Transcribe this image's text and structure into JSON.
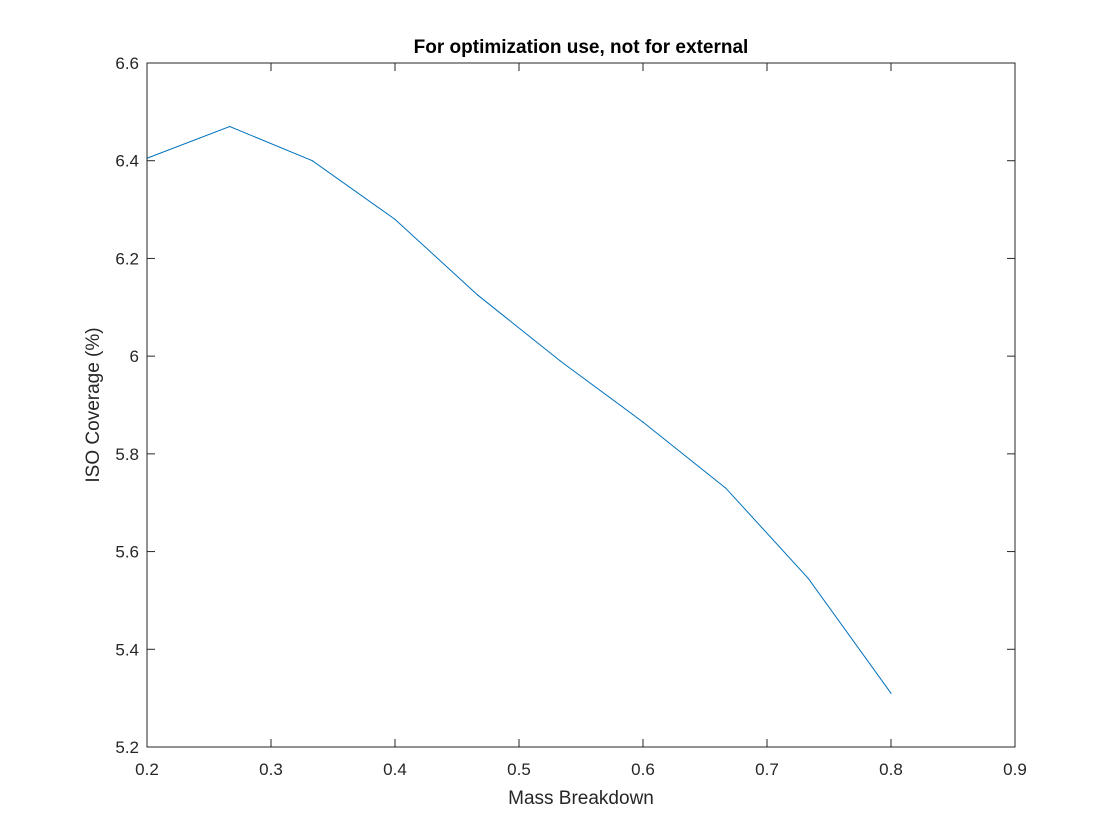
{
  "chart_data": {
    "type": "line",
    "title": "For optimization use, not for external",
    "xlabel": "Mass Breakdown",
    "ylabel": "ISO Coverage (%)",
    "xlim": [
      0.2,
      0.9
    ],
    "ylim": [
      5.2,
      6.6
    ],
    "xticks": [
      0.2,
      0.3,
      0.4,
      0.5,
      0.6,
      0.7,
      0.8,
      0.9
    ],
    "xtick_labels": [
      "0.2",
      "0.3",
      "0.4",
      "0.5",
      "0.6",
      "0.7",
      "0.8",
      "0.9"
    ],
    "yticks": [
      5.2,
      5.4,
      5.6,
      5.8,
      6.0,
      6.2,
      6.4,
      6.6
    ],
    "ytick_labels": [
      "5.2",
      "5.4",
      "5.6",
      "5.8",
      "6",
      "6.2",
      "6.4",
      "6.6"
    ],
    "grid": false,
    "series": [
      {
        "color": "#0072BD",
        "x": [
          0.2,
          0.2667,
          0.3333,
          0.4,
          0.4667,
          0.5333,
          0.6,
          0.6667,
          0.7333,
          0.8
        ],
        "y": [
          6.405,
          6.47,
          6.4,
          6.28,
          6.125,
          5.99,
          5.865,
          5.73,
          5.545,
          5.31
        ]
      }
    ]
  }
}
